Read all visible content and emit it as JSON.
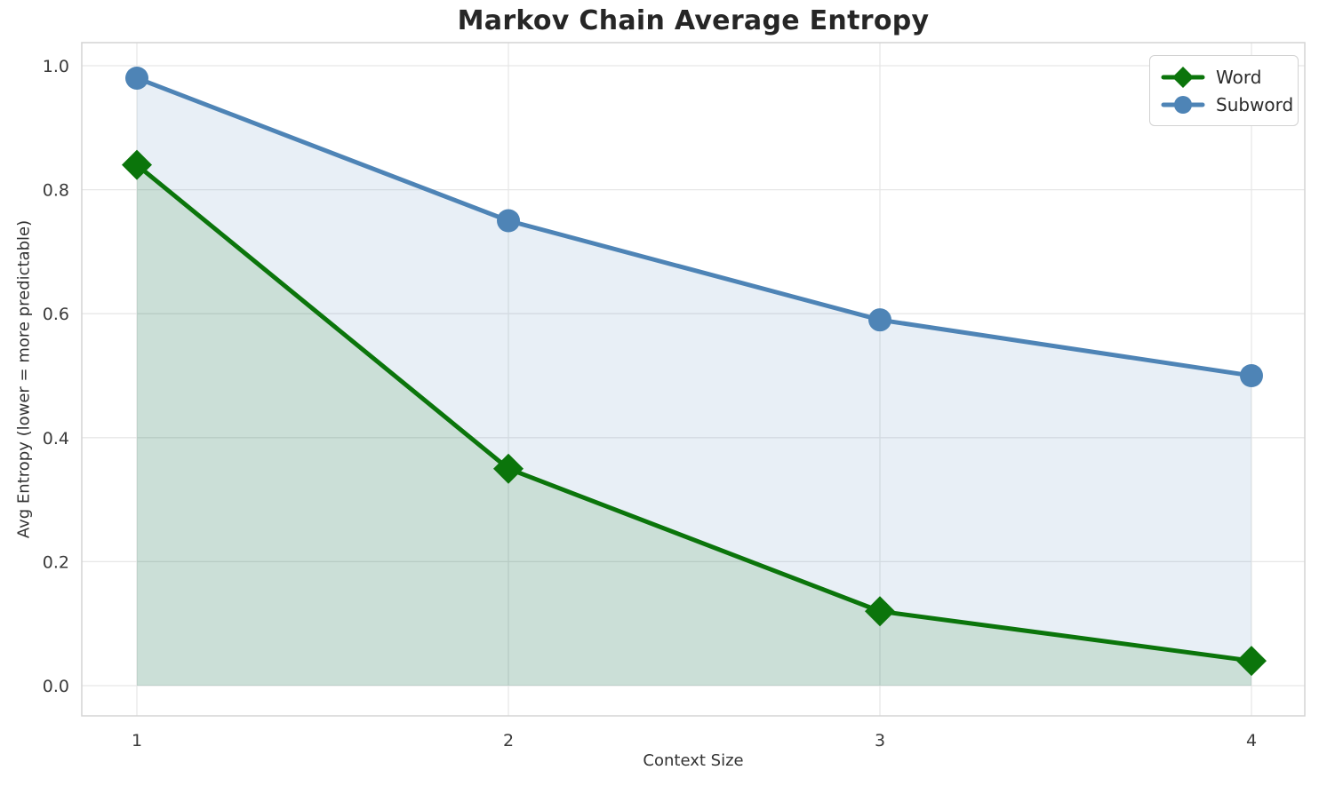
{
  "chart_data": {
    "type": "line",
    "title": "Markov Chain Average Entropy",
    "xlabel": "Context Size",
    "ylabel": "Avg Entropy (lower = more predictable)",
    "x": [
      1,
      2,
      3,
      4
    ],
    "x_tick_labels": [
      "1",
      "2",
      "3",
      "4"
    ],
    "y_tick_values": [
      0.0,
      0.2,
      0.4,
      0.6,
      0.8,
      1.0
    ],
    "y_tick_labels": [
      "0.0",
      "0.2",
      "0.4",
      "0.6",
      "0.8",
      "1.0"
    ],
    "xlim": [
      0.85,
      4.15
    ],
    "ylim": [
      -0.05,
      1.04
    ],
    "grid": true,
    "legend_position": "upper right",
    "fill_to_zero": true,
    "fill_opacity": 0.13,
    "series": [
      {
        "name": "Word",
        "marker": "diamond",
        "color": "#0b750b",
        "values": [
          0.84,
          0.35,
          0.12,
          0.04
        ]
      },
      {
        "name": "Subword",
        "marker": "circle",
        "color": "#4e84b6",
        "values": [
          0.98,
          0.75,
          0.59,
          0.5
        ]
      }
    ]
  },
  "style": {
    "grid_color": "#e7e7e7",
    "spine_color": "#d4d4d4",
    "tick_color": "#3a3a3a",
    "title_color": "#262626"
  }
}
